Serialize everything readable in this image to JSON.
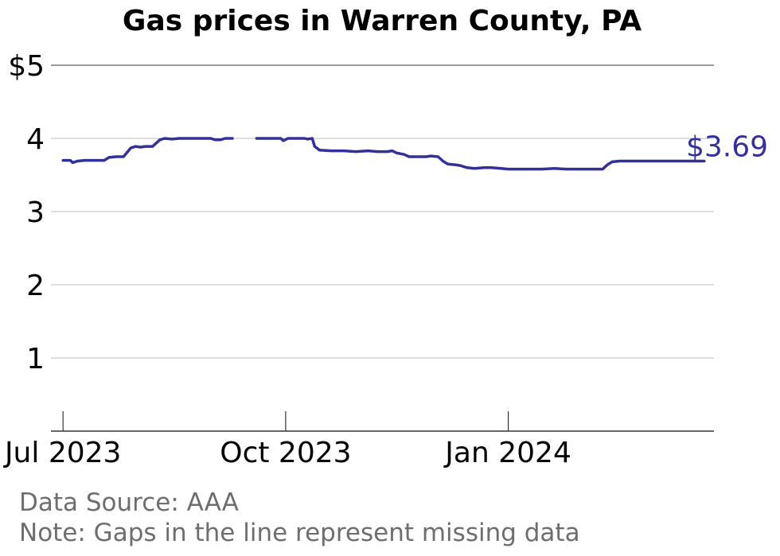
{
  "chart_data": {
    "type": "line",
    "title": "Gas prices in Warren County, PA",
    "xlabel": "",
    "ylabel": "",
    "ylim": [
      0,
      5
    ],
    "yticks": [
      1,
      2,
      3,
      4,
      5
    ],
    "ytick_labels": [
      "1",
      "2",
      "3",
      "4",
      "$5"
    ],
    "xlim": [
      "2023-06-26",
      "2024-03-26"
    ],
    "xticks": [
      "2023-07-01",
      "2023-10-01",
      "2024-01-01"
    ],
    "xtick_labels": [
      "Jul 2023",
      "Oct 2023",
      "Jan 2024"
    ],
    "grid": "horizontal",
    "line_color": "#33309a",
    "end_label": "$3.69",
    "series": [
      {
        "segments": [
          [
            [
              "2023-07-01",
              3.7
            ],
            [
              "2023-07-04",
              3.7
            ],
            [
              "2023-07-05",
              3.67
            ],
            [
              "2023-07-07",
              3.69
            ],
            [
              "2023-07-10",
              3.7
            ],
            [
              "2023-07-15",
              3.7
            ],
            [
              "2023-07-18",
              3.7
            ],
            [
              "2023-07-20",
              3.74
            ],
            [
              "2023-07-23",
              3.75
            ],
            [
              "2023-07-26",
              3.75
            ],
            [
              "2023-07-29",
              3.87
            ],
            [
              "2023-07-31",
              3.89
            ],
            [
              "2023-08-02",
              3.88
            ],
            [
              "2023-08-04",
              3.89
            ],
            [
              "2023-08-07",
              3.89
            ],
            [
              "2023-08-10",
              3.98
            ],
            [
              "2023-08-12",
              4.0
            ],
            [
              "2023-08-15",
              3.99
            ],
            [
              "2023-08-18",
              4.0
            ],
            [
              "2023-08-23",
              4.0
            ],
            [
              "2023-08-26",
              4.0
            ],
            [
              "2023-08-31",
              4.0
            ],
            [
              "2023-09-02",
              3.98
            ],
            [
              "2023-09-04",
              3.98
            ],
            [
              "2023-09-06",
              4.0
            ],
            [
              "2023-09-09",
              4.0
            ]
          ],
          [
            [
              "2023-09-19",
              4.0
            ],
            [
              "2023-09-22",
              4.0
            ],
            [
              "2023-09-26",
              4.0
            ],
            [
              "2023-09-29",
              4.0
            ],
            [
              "2023-09-30",
              3.97
            ],
            [
              "2023-10-02",
              4.0
            ],
            [
              "2023-10-06",
              4.0
            ],
            [
              "2023-10-09",
              4.0
            ],
            [
              "2023-10-10",
              3.99
            ],
            [
              "2023-10-12",
              4.0
            ],
            [
              "2023-10-13",
              3.89
            ],
            [
              "2023-10-15",
              3.84
            ],
            [
              "2023-10-20",
              3.83
            ],
            [
              "2023-10-25",
              3.83
            ],
            [
              "2023-10-30",
              3.82
            ],
            [
              "2023-11-04",
              3.83
            ],
            [
              "2023-11-08",
              3.82
            ],
            [
              "2023-11-12",
              3.82
            ],
            [
              "2023-11-14",
              3.83
            ],
            [
              "2023-11-16",
              3.8
            ],
            [
              "2023-11-19",
              3.78
            ],
            [
              "2023-11-21",
              3.75
            ],
            [
              "2023-11-25",
              3.75
            ],
            [
              "2023-11-28",
              3.75
            ],
            [
              "2023-11-30",
              3.76
            ],
            [
              "2023-12-03",
              3.75
            ],
            [
              "2023-12-05",
              3.69
            ],
            [
              "2023-12-07",
              3.65
            ],
            [
              "2023-12-10",
              3.64
            ],
            [
              "2023-12-12",
              3.63
            ],
            [
              "2023-12-15",
              3.6
            ],
            [
              "2023-12-18",
              3.59
            ],
            [
              "2023-12-22",
              3.6
            ],
            [
              "2023-12-25",
              3.6
            ],
            [
              "2023-12-29",
              3.59
            ],
            [
              "2024-01-01",
              3.58
            ],
            [
              "2024-01-05",
              3.58
            ],
            [
              "2024-01-10",
              3.58
            ],
            [
              "2024-01-15",
              3.58
            ],
            [
              "2024-01-20",
              3.59
            ],
            [
              "2024-01-25",
              3.58
            ],
            [
              "2024-01-30",
              3.58
            ],
            [
              "2024-02-04",
              3.58
            ],
            [
              "2024-02-09",
              3.58
            ],
            [
              "2024-02-11",
              3.64
            ],
            [
              "2024-02-13",
              3.68
            ],
            [
              "2024-02-16",
              3.69
            ],
            [
              "2024-02-20",
              3.69
            ],
            [
              "2024-02-25",
              3.69
            ],
            [
              "2024-03-01",
              3.69
            ],
            [
              "2024-03-06",
              3.69
            ],
            [
              "2024-03-10",
              3.69
            ],
            [
              "2024-03-15",
              3.69
            ],
            [
              "2024-03-22",
              3.69
            ]
          ]
        ]
      }
    ]
  },
  "footnotes": {
    "source": "Data Source: AAA",
    "note": "Note: Gaps in the line represent missing data"
  }
}
